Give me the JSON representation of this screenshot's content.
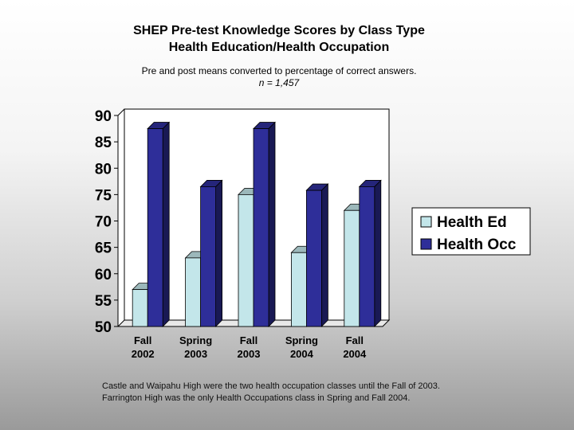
{
  "title_line1": "SHEP Pre-test  Knowledge Scores by Class Type",
  "title_line2": "Health Education/Health Occupation",
  "subtitle_line1": "Pre and post means converted to percentage of correct answers.",
  "subtitle_line2": "n = 1,457",
  "notes": [
    "Castle and Waipahu High were the two health occupation classes until the Fall of 2003.",
    "Farrington High was the only Health Occupations class in Spring and Fall 2004."
  ],
  "chart_data": {
    "type": "bar",
    "categories": [
      [
        "Fall",
        "2002"
      ],
      [
        "Spring",
        "2003"
      ],
      [
        "Fall",
        "2003"
      ],
      [
        "Spring",
        "2004"
      ],
      [
        "Fall",
        "2004"
      ]
    ],
    "series": [
      {
        "name": "Health Ed",
        "values": [
          57,
          63,
          75,
          64,
          72
        ],
        "color": "#c3e6ea"
      },
      {
        "name": "Health Occ",
        "values": [
          87.5,
          76.5,
          87.5,
          75.8,
          76.5
        ],
        "color": "#2e2e99"
      }
    ],
    "ylim": [
      50,
      90
    ],
    "yticks": [
      50,
      55,
      60,
      65,
      70,
      75,
      80,
      85,
      90
    ],
    "grid": false,
    "legend_position": "right"
  }
}
